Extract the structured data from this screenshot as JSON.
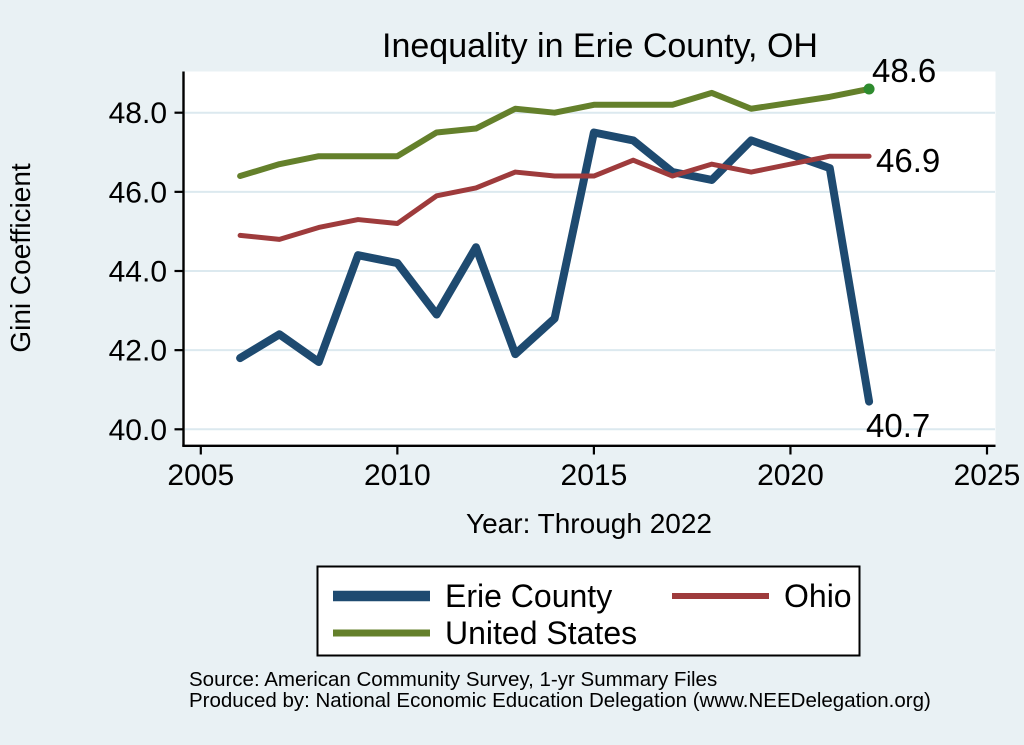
{
  "title": {
    "text": "Inequality in Erie County, OH"
  },
  "colors": {
    "background": "#e9f1f4",
    "title": "#1f3864",
    "plot_background": "#ffffff",
    "gridline": "#dce9ef",
    "axis": "#000000",
    "end_marker": "#2e8b2e"
  },
  "chart_data": {
    "type": "line",
    "title": "Inequality in Erie County, OH",
    "xlabel": "Year: Through 2022",
    "ylabel": "Gini Coefficient",
    "x": [
      2006,
      2007,
      2008,
      2009,
      2010,
      2011,
      2012,
      2013,
      2014,
      2015,
      2016,
      2017,
      2018,
      2019,
      2020,
      2021,
      2022
    ],
    "series": [
      {
        "name": "Erie County",
        "color": "#1e4a70",
        "stroke_width": 8,
        "values": [
          41.8,
          42.4,
          41.7,
          44.4,
          44.2,
          42.9,
          44.6,
          41.9,
          42.8,
          47.5,
          47.3,
          46.5,
          46.3,
          47.3,
          null,
          46.6,
          40.7
        ]
      },
      {
        "name": "Ohio",
        "color": "#9e3b3c",
        "stroke_width": 5,
        "values": [
          44.9,
          44.8,
          45.1,
          45.3,
          45.2,
          45.9,
          46.1,
          46.5,
          46.4,
          46.4,
          46.8,
          46.4,
          46.7,
          46.5,
          null,
          46.9,
          46.9
        ]
      },
      {
        "name": "United States",
        "color": "#64802b",
        "stroke_width": 6,
        "values": [
          46.4,
          46.7,
          46.9,
          46.9,
          46.9,
          47.5,
          47.6,
          48.1,
          48.0,
          48.2,
          48.2,
          48.2,
          48.5,
          48.1,
          null,
          48.4,
          48.6
        ]
      }
    ],
    "x_ticks": {
      "values": [
        2005,
        2010,
        2015,
        2020,
        2025
      ],
      "labels": [
        "2005",
        "2010",
        "2015",
        "2020",
        "2025"
      ]
    },
    "y_ticks": {
      "values": [
        40,
        42,
        44,
        46,
        48
      ],
      "labels": [
        "40.0",
        "42.0",
        "44.0",
        "46.0",
        "48.0"
      ]
    },
    "xlim": [
      2004.5,
      2025.2
    ],
    "ylim": [
      39.6,
      49.0
    ],
    "grid": "horizontal",
    "legend_position": "bottom",
    "data_gap_note": "no 2020 values; lines connect 2019 to 2021",
    "annotations": [
      {
        "series": "United States",
        "year": 2022,
        "text": "48.6"
      },
      {
        "series": "Ohio",
        "year": 2022,
        "text": "46.9"
      },
      {
        "series": "Erie County",
        "year": 2022,
        "text": "40.7"
      }
    ],
    "end_marker": {
      "series": "United States",
      "year": 2022,
      "value": 48.6
    }
  },
  "notes": {
    "source": "Source: American Community Survey, 1-yr Summary Files",
    "producer": "Produced by: National Economic Education Delegation (www.NEEDelegation.org)"
  }
}
